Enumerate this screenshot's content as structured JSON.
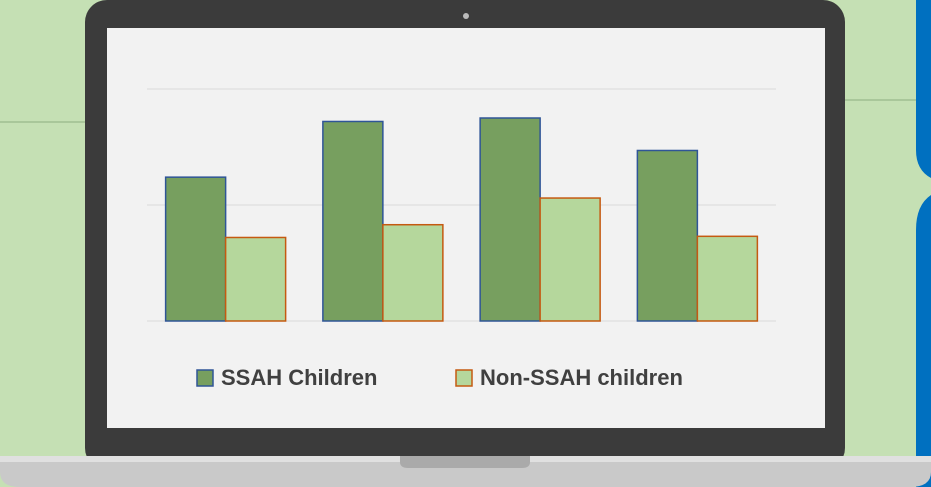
{
  "chart_data": {
    "type": "bar",
    "categories": [
      null,
      null,
      null,
      null
    ],
    "series": [
      {
        "name": "SSAH Children",
        "color": "#779f5f",
        "edge_color": "#2f5597",
        "values": [
          1.24,
          1.72,
          1.75,
          1.47
        ]
      },
      {
        "name": "Non-SSAH children",
        "color": "#b5d79c",
        "edge_color": "#c55a11",
        "values": [
          0.72,
          0.83,
          1.06,
          0.73
        ]
      }
    ],
    "ylim": [
      0,
      2
    ],
    "yticks": [
      0,
      1,
      2
    ],
    "grid": true,
    "tick_labels": false,
    "legend": "bottom"
  }
}
